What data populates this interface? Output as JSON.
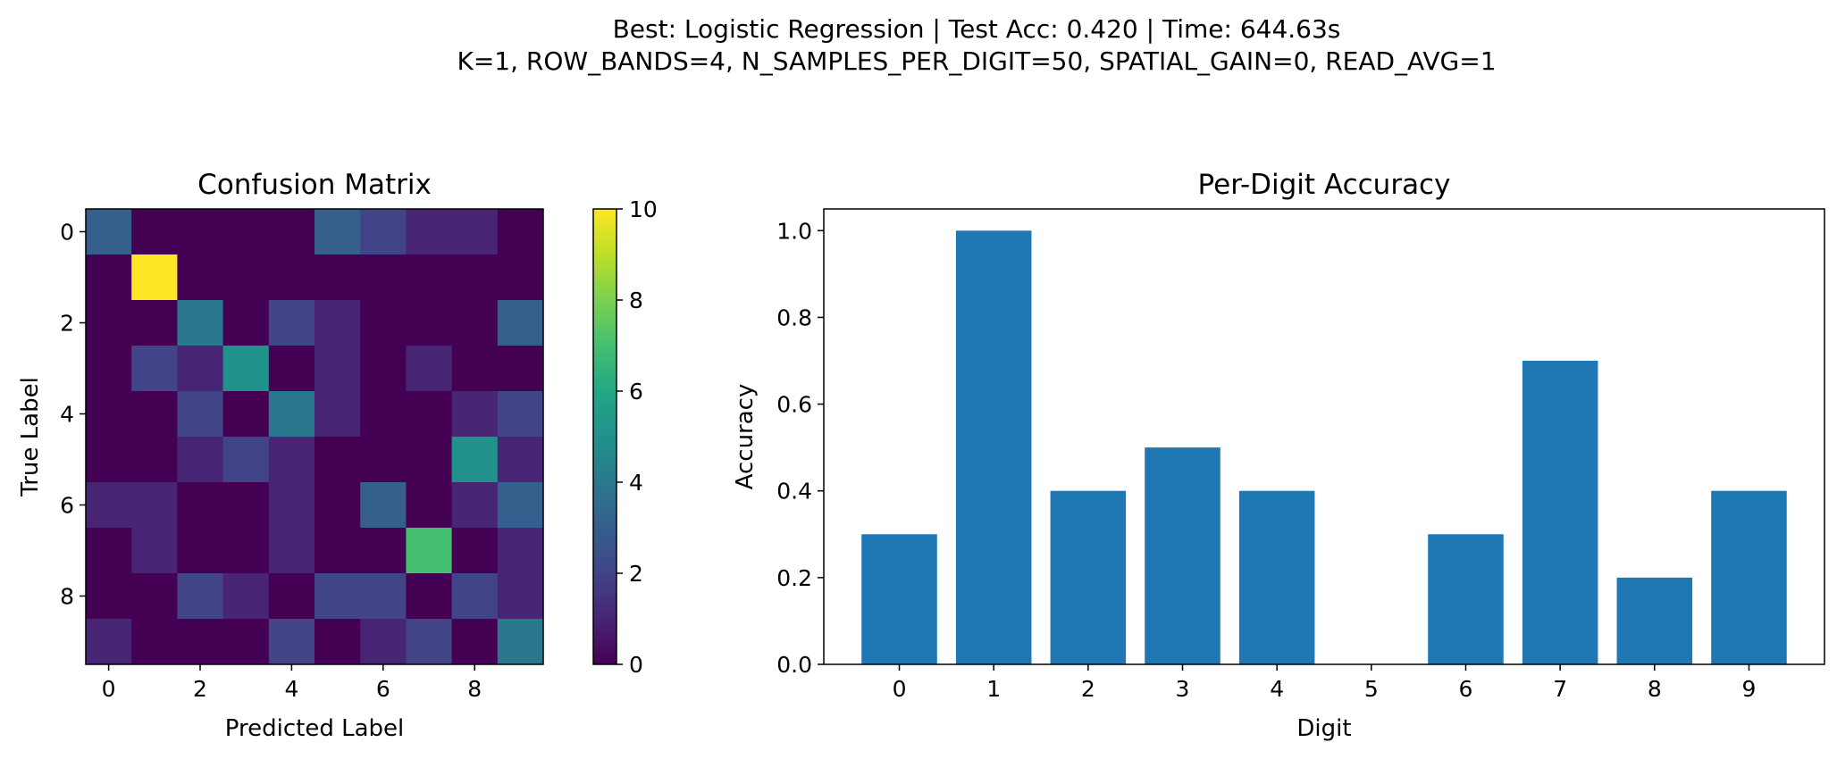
{
  "figure": {
    "suptitle_line1": "Best: Logistic Regression  |  Test Acc: 0.420  |  Time: 644.63s",
    "suptitle_line2": "K=1, ROW_BANDS=4, N_SAMPLES_PER_DIGIT=50, SPATIAL_GAIN=0, READ_AVG=1"
  },
  "chart_data": [
    {
      "type": "heatmap",
      "title": "Confusion Matrix",
      "xlabel": "Predicted Label",
      "ylabel": "True Label",
      "x_ticks": [
        "0",
        "2",
        "4",
        "6",
        "8"
      ],
      "y_ticks": [
        "0",
        "2",
        "4",
        "6",
        "8"
      ],
      "colorbar": {
        "min": 0,
        "max": 10,
        "ticks": [
          "0",
          "2",
          "4",
          "6",
          "8",
          "10"
        ],
        "colormap": "viridis"
      },
      "matrix": [
        [
          3,
          0,
          0,
          0,
          0,
          3,
          2,
          1,
          1,
          0
        ],
        [
          0,
          10,
          0,
          0,
          0,
          0,
          0,
          0,
          0,
          0
        ],
        [
          0,
          0,
          4,
          0,
          2,
          1,
          0,
          0,
          0,
          3
        ],
        [
          0,
          2,
          1,
          5,
          0,
          1,
          0,
          1,
          0,
          0
        ],
        [
          0,
          0,
          2,
          0,
          4,
          1,
          0,
          0,
          1,
          2
        ],
        [
          0,
          0,
          1,
          2,
          1,
          0,
          0,
          0,
          5,
          1
        ],
        [
          1,
          1,
          0,
          0,
          1,
          0,
          3,
          0,
          1,
          3
        ],
        [
          0,
          1,
          0,
          0,
          1,
          0,
          0,
          7,
          0,
          1
        ],
        [
          0,
          0,
          2,
          1,
          0,
          2,
          2,
          0,
          2,
          1
        ],
        [
          1,
          0,
          0,
          0,
          2,
          0,
          1,
          2,
          0,
          4
        ]
      ]
    },
    {
      "type": "bar",
      "title": "Per-Digit Accuracy",
      "xlabel": "Digit",
      "ylabel": "Accuracy",
      "categories": [
        "0",
        "1",
        "2",
        "3",
        "4",
        "5",
        "6",
        "7",
        "8",
        "9"
      ],
      "values": [
        0.3,
        1.0,
        0.4,
        0.5,
        0.4,
        0.0,
        0.3,
        0.7,
        0.2,
        0.4
      ],
      "ylim": [
        0,
        1.05
      ],
      "y_ticks": [
        "0.0",
        "0.2",
        "0.4",
        "0.6",
        "0.8",
        "1.0"
      ],
      "color": "#1f77b4",
      "grid": false
    }
  ]
}
